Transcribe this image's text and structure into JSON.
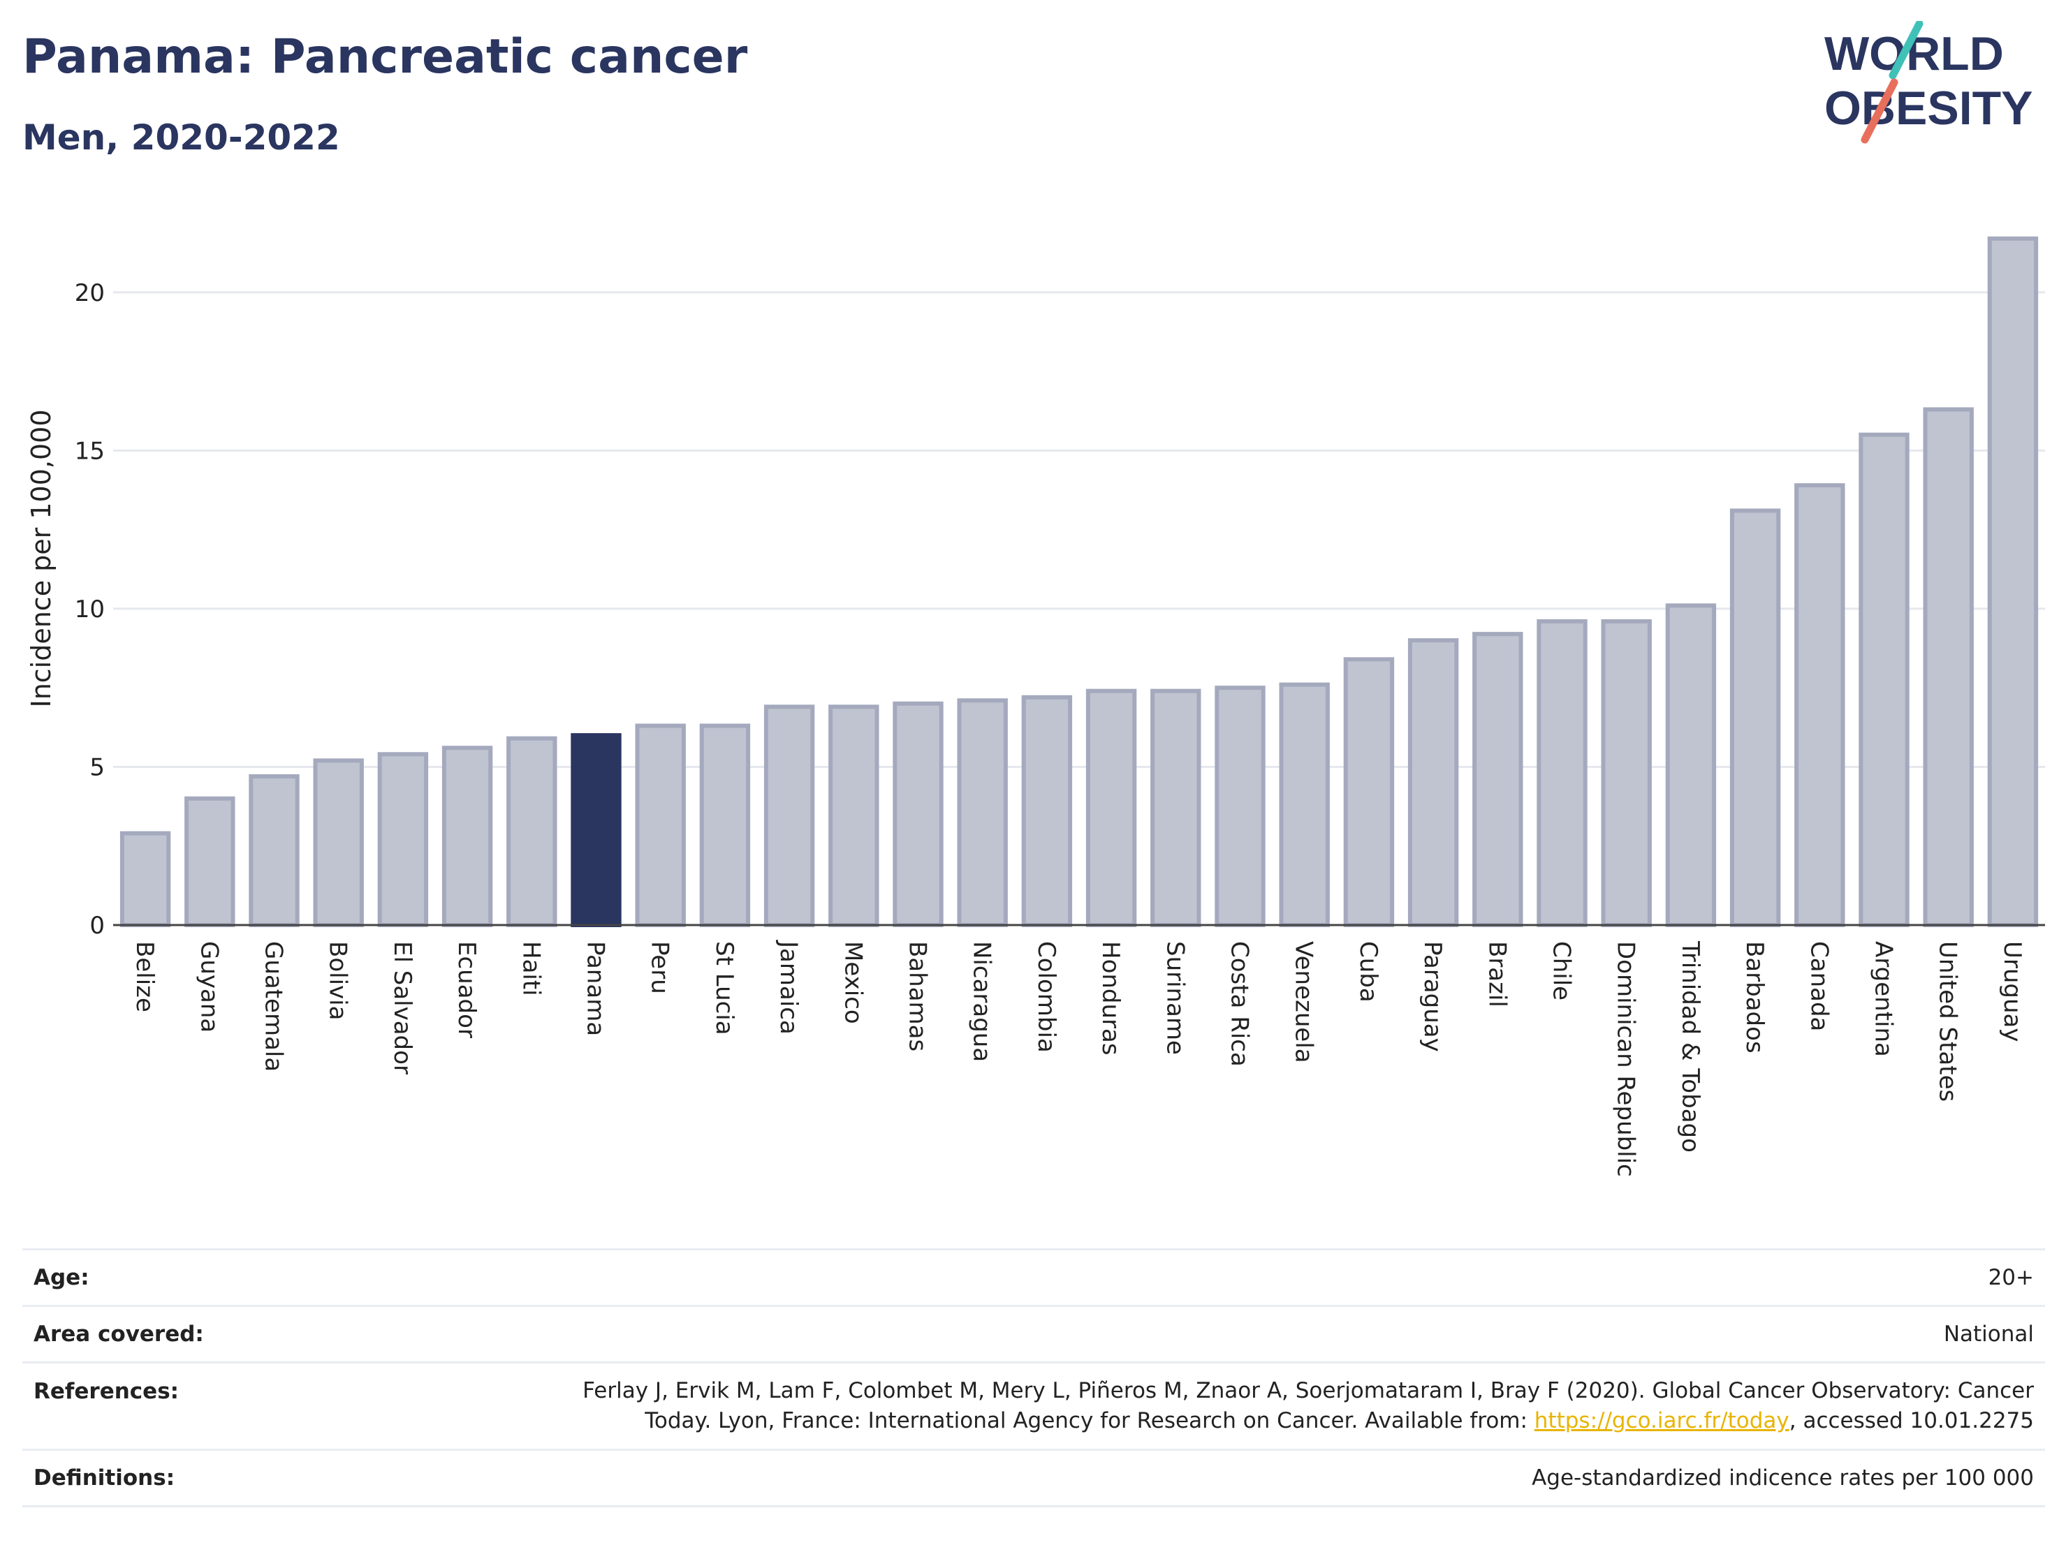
{
  "title": "Panama: Pancreatic cancer",
  "subtitle": "Men, 2020-2022",
  "logo": {
    "line1": "WORLD",
    "line2": "OBESITY",
    "slash_colors": [
      "#3fc1b8",
      "#e86f5c"
    ],
    "text_color": "#2a3560"
  },
  "colors": {
    "bar": "#c0c4d1",
    "bar_stroke": "#a4a9bd",
    "highlight": "#2a3560",
    "grid": "#e6e8ee"
  },
  "chart_data": {
    "type": "bar",
    "ylabel": "Incidence per 100,000",
    "ylim": [
      0,
      22.4
    ],
    "yticks": [
      0,
      5,
      10,
      15,
      20
    ],
    "highlight": "Panama",
    "categories": [
      "Belize",
      "Guyana",
      "Guatemala",
      "Bolivia",
      "El Salvador",
      "Ecuador",
      "Haiti",
      "Panama",
      "Peru",
      "St Lucia",
      "Jamaica",
      "Mexico",
      "Bahamas",
      "Nicaragua",
      "Colombia",
      "Honduras",
      "Suriname",
      "Costa Rica",
      "Venezuela",
      "Cuba",
      "Paraguay",
      "Brazil",
      "Chile",
      "Dominican Republic",
      "Trinidad & Tobago",
      "Barbados",
      "Canada",
      "Argentina",
      "United States",
      "Uruguay"
    ],
    "values": [
      2.9,
      4.0,
      4.7,
      5.2,
      5.4,
      5.6,
      5.9,
      6.0,
      6.3,
      6.3,
      6.9,
      6.9,
      7.0,
      7.1,
      7.2,
      7.4,
      7.4,
      7.5,
      7.6,
      8.4,
      9.0,
      9.2,
      9.6,
      9.6,
      10.1,
      13.1,
      13.9,
      15.5,
      16.3,
      21.7
    ]
  },
  "meta": {
    "age_label": "Age:",
    "age_value": "20+",
    "area_label": "Area covered:",
    "area_value": "National",
    "ref_label": "References:",
    "ref_line1": "Ferlay J, Ervik M, Lam F, Colombet M, Mery L, Piñeros M, Znaor A, Soerjomataram I, Bray F (2020). Global Cancer Observatory: Cancer",
    "ref_line2_pre": "Today. Lyon, France: International Agency for Research on Cancer. Available from: ",
    "ref_link": "https://gco.iarc.fr/today",
    "ref_line2_post": ", accessed 10.01.2275",
    "def_label": "Definitions:",
    "def_value": "Age-standardized indicence rates per 100 000"
  }
}
